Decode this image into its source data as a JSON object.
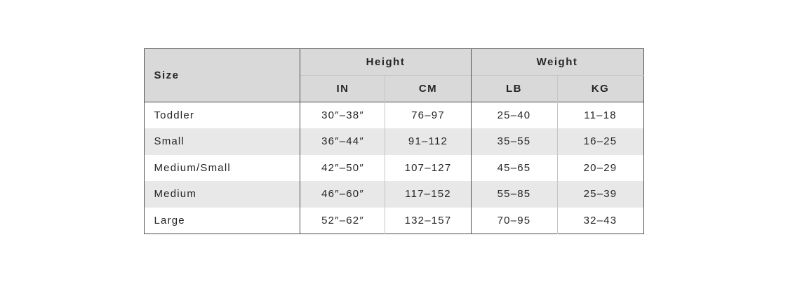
{
  "table": {
    "header": {
      "size_label": "Size",
      "height_label": "Height",
      "weight_label": "Weight",
      "in_label": "IN",
      "cm_label": "CM",
      "lb_label": "LB",
      "kg_label": "KG"
    },
    "rows": [
      {
        "size": "Toddler",
        "height_in": "30″–38″",
        "height_cm": "76–97",
        "weight_lb": "25–40",
        "weight_kg": "11–18"
      },
      {
        "size": "Small",
        "height_in": "36″–44″",
        "height_cm": "91–112",
        "weight_lb": "35–55",
        "weight_kg": "16–25"
      },
      {
        "size": "Medium/Small",
        "height_in": "42″–50″",
        "height_cm": "107–127",
        "weight_lb": "45–65",
        "weight_kg": "20–29"
      },
      {
        "size": "Medium",
        "height_in": "46″–60″",
        "height_cm": "117–152",
        "weight_lb": "55–85",
        "weight_kg": "25–39"
      },
      {
        "size": "Large",
        "height_in": "52″–62″",
        "height_cm": "132–157",
        "weight_lb": "70–95",
        "weight_kg": "32–43"
      }
    ]
  },
  "colors": {
    "header_bg": "#d9d9d9",
    "row_alt_bg": "#e8e8e8",
    "border_dark": "#4d4d4d",
    "border_light": "#c6c6c6",
    "text_color": "#262626",
    "page_bg": "#ffffff"
  }
}
